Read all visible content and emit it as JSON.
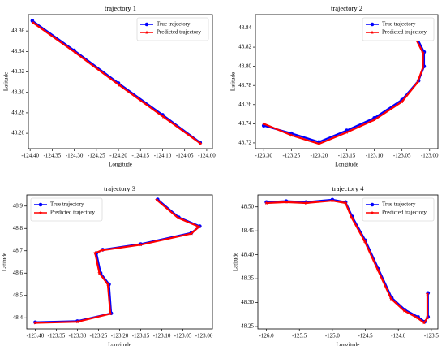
{
  "chart_data": [
    {
      "type": "line",
      "title": "trajectory 1",
      "x_label": "Longitude",
      "y_label": "Latitude",
      "legend": "upper right",
      "xlim": [
        -124.404,
        -123.987
      ],
      "ylim": [
        48.245,
        48.376
      ],
      "xticks": [
        {
          "value": -124.4,
          "label": "-124.40"
        },
        -124.35,
        {
          "value": -124.3,
          "label": "-124.30"
        },
        -124.25,
        {
          "value": -124.2,
          "label": "-124.20"
        },
        -124.15,
        {
          "value": -124.1,
          "label": "-124.10"
        },
        -124.05,
        {
          "value": -124.0,
          "label": "-124.00"
        }
      ],
      "yticks": [
        48.26,
        48.28,
        {
          "value": 48.3,
          "label": "48.30"
        },
        48.32,
        48.34,
        48.36
      ],
      "series": [
        {
          "name": "True trajectory",
          "color": "#0000ff",
          "marker": "circle",
          "x": [
            -124.395,
            -124.3,
            -124.2,
            -124.1,
            -124.015
          ],
          "values": [
            48.37,
            48.341,
            48.309,
            48.278,
            48.251
          ]
        },
        {
          "name": "Predicted trajectory",
          "color": "#ff0000",
          "marker": "star",
          "x": [
            -124.393,
            -124.298,
            -124.198,
            -124.098,
            -124.014
          ],
          "values": [
            48.368,
            48.339,
            48.307,
            48.276,
            48.25
          ]
        }
      ]
    },
    {
      "type": "line",
      "title": "trajectory 2",
      "x_label": "Longitude",
      "y_label": "Latitude",
      "legend": "upper right",
      "xlim": [
        -123.315,
        -122.985
      ],
      "ylim": [
        48.714,
        48.854
      ],
      "xticks": [
        {
          "value": -123.3,
          "label": "-123.30"
        },
        -123.25,
        {
          "value": -123.2,
          "label": "-123.20"
        },
        -123.15,
        {
          "value": -123.1,
          "label": "-123.10"
        },
        -123.05,
        {
          "value": -123.0,
          "label": "-123.00"
        }
      ],
      "yticks": [
        48.72,
        48.74,
        48.76,
        48.78,
        {
          "value": 48.8,
          "label": "48.80"
        },
        48.82,
        48.84
      ],
      "series": [
        {
          "name": "True trajectory",
          "color": "#0000ff",
          "marker": "circle",
          "x": [
            -123.3,
            -123.25,
            -123.2,
            -123.15,
            -123.1,
            -123.05,
            -123.02,
            -123.01,
            -123.01,
            -123.025,
            -123.04
          ],
          "values": [
            48.738,
            48.73,
            48.721,
            48.733,
            48.746,
            48.765,
            48.785,
            48.8,
            48.815,
            48.832,
            48.848
          ]
        },
        {
          "name": "Predicted trajectory",
          "color": "#ff0000",
          "marker": "star",
          "x": [
            -123.3,
            -123.25,
            -123.2,
            -123.15,
            -123.1,
            -123.05,
            -123.022,
            -123.012,
            -123.012,
            -123.027,
            -123.042
          ],
          "values": [
            48.74,
            48.728,
            48.719,
            48.731,
            48.744,
            48.763,
            48.783,
            48.799,
            48.814,
            48.831,
            48.846
          ]
        }
      ]
    },
    {
      "type": "line",
      "title": "trajectory 3",
      "x_label": "Longitude",
      "y_label": "Latitude",
      "legend": "upper left",
      "xlim": [
        -123.42,
        -122.98
      ],
      "ylim": [
        48.35,
        48.95
      ],
      "xticks": [
        {
          "value": -123.4,
          "label": "-123.40"
        },
        -123.35,
        {
          "value": -123.3,
          "label": "-123.30"
        },
        -123.25,
        {
          "value": -123.2,
          "label": "-123.20"
        },
        -123.15,
        {
          "value": -123.1,
          "label": "-123.10"
        },
        -123.05,
        {
          "value": -123.0,
          "label": "-123.00"
        }
      ],
      "yticks": [
        48.4,
        48.5,
        48.6,
        48.7,
        48.8,
        48.9
      ],
      "series": [
        {
          "name": "True trajectory",
          "color": "#0000ff",
          "marker": "circle",
          "x": [
            -123.4,
            -123.3,
            -123.22,
            -123.225,
            -123.245,
            -123.255,
            -123.24,
            -123.15,
            -123.03,
            -123.01,
            -123.06,
            -123.11
          ],
          "values": [
            48.38,
            48.385,
            48.42,
            48.55,
            48.6,
            48.69,
            48.705,
            48.73,
            48.78,
            48.81,
            48.85,
            48.93
          ]
        },
        {
          "name": "Predicted trajectory",
          "color": "#ff0000",
          "marker": "star",
          "x": [
            -123.4,
            -123.3,
            -123.222,
            -123.228,
            -123.248,
            -123.258,
            -123.242,
            -123.15,
            -123.03,
            -123.012,
            -123.062,
            -123.112
          ],
          "values": [
            48.377,
            48.382,
            48.418,
            48.55,
            48.6,
            48.69,
            48.702,
            48.727,
            48.777,
            48.808,
            48.848,
            48.928
          ]
        }
      ]
    },
    {
      "type": "line",
      "title": "trajectory 4",
      "x_label": "Longitude",
      "y_label": "Latitude",
      "legend": "upper right",
      "xlim": [
        -126.13,
        -123.4
      ],
      "ylim": [
        48.245,
        48.525
      ],
      "xticks": [
        {
          "value": -126.0,
          "label": "-126.0"
        },
        -125.5,
        {
          "value": -125.0,
          "label": "-125.0"
        },
        -124.5,
        {
          "value": -124.0,
          "label": "-124.0"
        },
        -123.5
      ],
      "yticks": [
        48.25,
        {
          "value": 48.3,
          "label": "48.30"
        },
        48.35,
        {
          "value": 48.4,
          "label": "48.40"
        },
        48.45,
        {
          "value": 48.5,
          "label": "48.50"
        }
      ],
      "series": [
        {
          "name": "True trajectory",
          "color": "#0000ff",
          "marker": "circle",
          "x": [
            -126.0,
            -125.7,
            -125.4,
            -125.0,
            -124.8,
            -124.7,
            -124.5,
            -124.3,
            -124.1,
            -123.9,
            -123.7,
            -123.6,
            -123.55,
            -123.55
          ],
          "values": [
            48.51,
            48.512,
            48.51,
            48.515,
            48.51,
            48.48,
            48.43,
            48.37,
            48.31,
            48.285,
            48.27,
            48.26,
            48.27,
            48.32
          ]
        },
        {
          "name": "Predicted trajectory",
          "color": "#ff0000",
          "marker": "star",
          "x": [
            -126.0,
            -125.7,
            -125.4,
            -125.0,
            -124.8,
            -124.71,
            -124.51,
            -124.31,
            -124.11,
            -123.91,
            -123.71,
            -123.61,
            -123.56,
            -123.56
          ],
          "values": [
            48.508,
            48.51,
            48.508,
            48.513,
            48.508,
            48.478,
            48.428,
            48.368,
            48.308,
            48.283,
            48.268,
            48.258,
            48.268,
            48.318
          ]
        }
      ]
    }
  ]
}
